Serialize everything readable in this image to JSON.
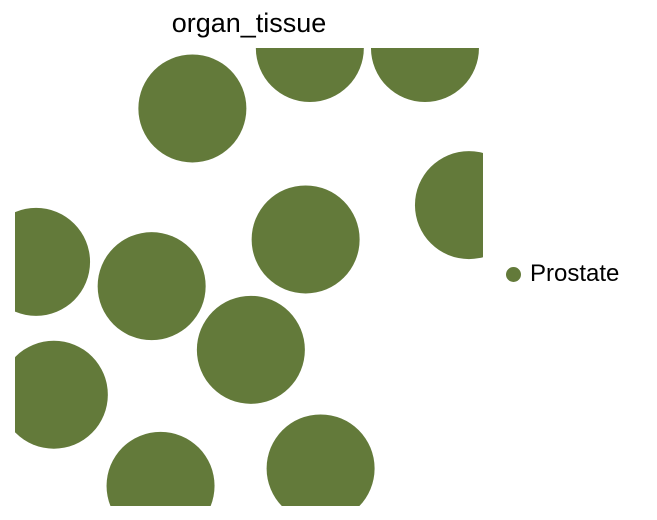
{
  "chart_data": {
    "type": "scatter",
    "title": "organ_tissue",
    "xlabel": "",
    "ylabel": "",
    "xlim": [
      0,
      10
    ],
    "ylim": [
      0,
      10
    ],
    "grid": false,
    "legend_position": "right",
    "series": [
      {
        "name": "Prostate",
        "color": "#637a3a",
        "points": [
          {
            "x": 3.79,
            "y": 8.68
          },
          {
            "x": 6.3,
            "y": 10.0
          },
          {
            "x": 8.76,
            "y": 10.0
          },
          {
            "x": 9.7,
            "y": 6.57
          },
          {
            "x": 0.45,
            "y": 5.33
          },
          {
            "x": 2.92,
            "y": 4.8
          },
          {
            "x": 6.21,
            "y": 5.82
          },
          {
            "x": 5.04,
            "y": 3.41
          },
          {
            "x": 0.83,
            "y": 2.43
          },
          {
            "x": 3.11,
            "y": 0.44
          },
          {
            "x": 6.53,
            "y": 0.82
          }
        ]
      }
    ]
  }
}
